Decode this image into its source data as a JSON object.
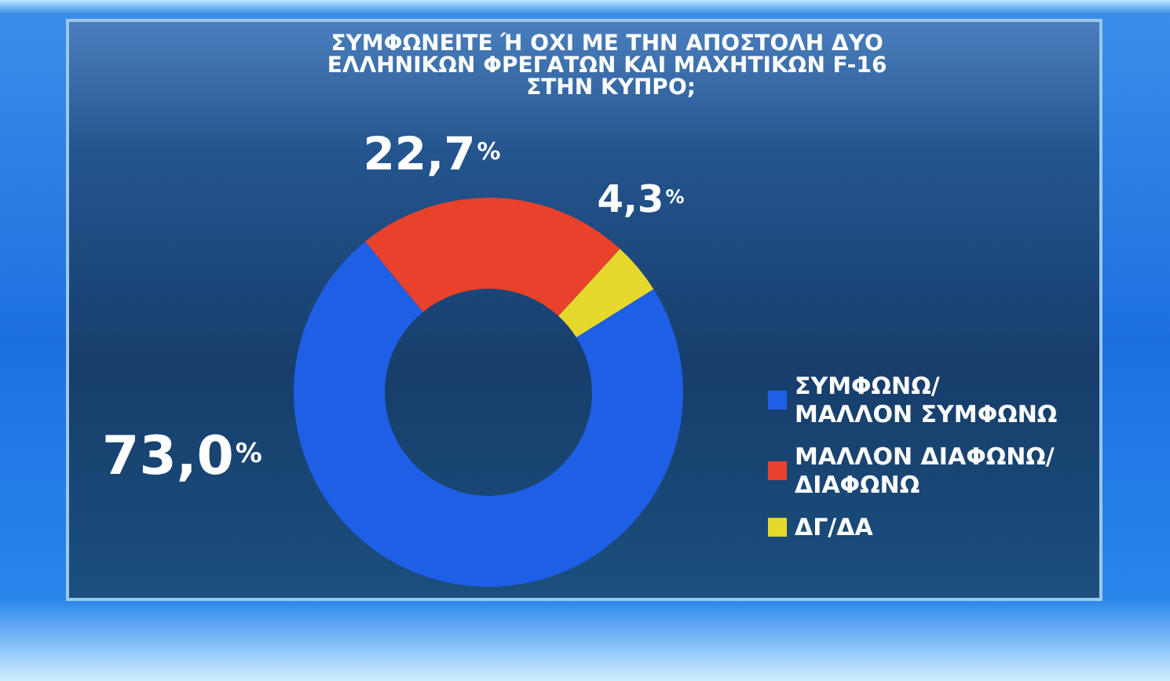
{
  "chart_data": {
    "type": "donut",
    "title": "ΣΥΜΦΩΝΕΙΤΕ Ή ΟΧΙ ΜΕ ΤΗΝ ΑΠΟΣΤΟΛΗ ΔΥΟ ΕΛΛΗΝΙΚΩΝ ΦΡΕΓΑΤΩΝ ΚΑΙ ΜΑΧΗΤΙΚΩΝ F-16 ΣΤΗΝ ΚΥΠΡΟ;",
    "categories": [
      "ΣΥΜΦΩΝΩ/ ΜΑΛΛΟΝ ΣΥΜΦΩΝΩ",
      "ΜΑΛΛΟΝ ΔΙΑΦΩΝΩ/ ΔΙΑΦΩΝΩ",
      "ΔΓ/ΔΑ"
    ],
    "values": [
      73.0,
      22.7,
      4.3
    ],
    "colors": [
      "#1f5fe6",
      "#e8412c",
      "#e6d82c"
    ],
    "value_labels": [
      "73,0%",
      "22,7%",
      "4,3%"
    ],
    "legend": "right"
  }
}
